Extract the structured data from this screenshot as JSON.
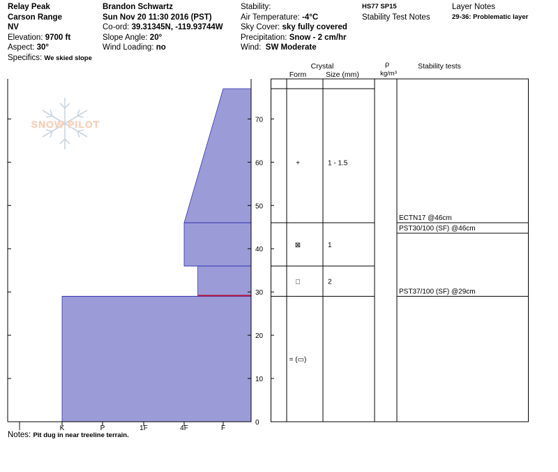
{
  "header": {
    "location": "Relay Peak",
    "range": "Carson Range",
    "state": "NV",
    "elevation_label": "Elevation:",
    "elevation": "9700 ft",
    "aspect_label": "Aspect:",
    "aspect": "30°",
    "specifics_label": "Specifics:",
    "specifics": "We skied slope",
    "observer": "Brandon Schwartz",
    "datetime": "Sun Nov 20 11:30 2016 (PST)",
    "coord_label": "Co-ord:",
    "coord": "39.31345N, -119.93744W",
    "slope_label": "Slope Angle:",
    "slope": "20°",
    "wind_loading_label": "Wind Loading:",
    "wind_loading": "no",
    "stability_label": "Stability:",
    "air_temp_label": "Air Temperature:",
    "air_temp": "-4°C",
    "sky_label": "Sky Cover:",
    "sky": "sky fully covered",
    "precip_label": "Precipitation:",
    "precip": "Snow - 2 cm/hr",
    "wind_label": "Wind:",
    "wind": "SW Moderate",
    "hs_sp": "HS77 SP15",
    "stability_notes_label": "Stability Test Notes",
    "layer_notes_label": "Layer Notes",
    "layer_note": "29-36: Problematic layer",
    "notes_label": "Notes:",
    "notes": "Pit dug in near treeline terrain."
  },
  "logo": {
    "text": "SNOW PILOT"
  },
  "columns": {
    "crystal": "Crystal",
    "form": "Form",
    "size": "Size (mm)",
    "rho": "ρ",
    "rho_unit": "kg/m³",
    "stability_tests": "Stability tests"
  },
  "chart_data": {
    "type": "area",
    "ylim": [
      0,
      77
    ],
    "yticks": [
      0,
      10,
      20,
      30,
      40,
      50,
      60,
      70
    ],
    "xticks": [
      "I",
      "K",
      "P",
      "1F",
      "4F",
      "F"
    ],
    "hardness_profile": [
      {
        "bottom": 0,
        "top": 29,
        "hardness_bottom": "K",
        "hardness_top": "K"
      },
      {
        "bottom": 29,
        "top": 36,
        "hardness_bottom": "4F-F",
        "hardness_top": "4F-F"
      },
      {
        "bottom": 36,
        "top": 46,
        "hardness_bottom": "4F",
        "hardness_top": "4F"
      },
      {
        "bottom": 46,
        "top": 77,
        "hardness_bottom": "4F",
        "hardness_top": "F"
      }
    ],
    "hardness_index": {
      "I": 0,
      "K": 1,
      "P": 2,
      "1F": 3,
      "4F": 4,
      "F": 5,
      "4F-F": 4.35
    },
    "layer_boundaries": [
      29,
      36,
      46,
      77
    ],
    "problem_layer_depth": 29,
    "layers": [
      {
        "bottom": 46,
        "top": 77,
        "form": "+",
        "size": "1 - 1.5"
      },
      {
        "bottom": 36,
        "top": 46,
        "form": "⊠",
        "size": "1"
      },
      {
        "bottom": 29,
        "top": 36,
        "form": "□",
        "size": "2"
      },
      {
        "bottom": 0,
        "top": 29,
        "form": "= (▭)",
        "size": ""
      }
    ],
    "stability_tests": [
      {
        "label": "ECTN17 @46cm",
        "depth": 46
      },
      {
        "label": "PST30/100 (SF) @46cm",
        "depth": 46
      },
      {
        "label": "PST37/100 (SF) @29cm",
        "depth": 29
      }
    ]
  }
}
